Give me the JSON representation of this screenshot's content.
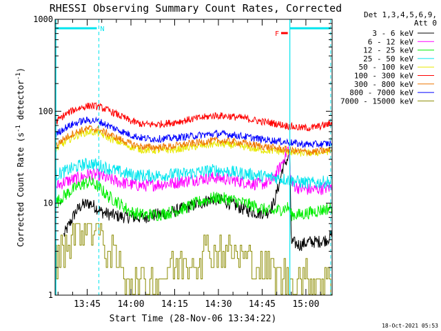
{
  "chart_data": {
    "type": "line",
    "title": "RHESSI Observing Summary Count Rates, Corrected",
    "xlabel": "Start Time (28-Nov-06 13:34:22)",
    "ylabel": "Corrected Count Rate (s⁻¹ detector⁻¹)",
    "ylabel_main": "Corrected Count Rate (s",
    "ylabel_sup1": "-1",
    "ylabel_mid": " detector",
    "ylabel_sup2": "-1",
    "ylabel_end": ")",
    "y_scale": "log",
    "ylim": [
      1,
      1000
    ],
    "xlim_min": [
      0,
      95
    ],
    "x_unit": "minutes after 13:34:22",
    "x_ticks": [
      {
        "t": 11,
        "label": "13:45"
      },
      {
        "t": 26,
        "label": "14:00"
      },
      {
        "t": 41,
        "label": "14:15"
      },
      {
        "t": 56,
        "label": "14:30"
      },
      {
        "t": 71,
        "label": "14:45"
      },
      {
        "t": 86,
        "label": "15:00"
      }
    ],
    "y_ticks": [
      {
        "v": 1,
        "label": "1"
      },
      {
        "v": 10,
        "label": "10"
      },
      {
        "v": 100,
        "label": "100"
      },
      {
        "v": 1000,
        "label": "1000"
      }
    ],
    "legend_position": "right",
    "legend_header": [
      "Det 1,3,4,5,6,9,",
      "Att 0"
    ],
    "timestamp": "18-Oct-2021 05:53",
    "annotations": {
      "night_marker": {
        "label": "N",
        "t_start": 0,
        "t_end": 15,
        "color": "#00e5ee"
      },
      "saa_marker": {
        "t_start": 80.5,
        "t_end": 94.5,
        "color": "#00e5ee"
      },
      "flare_marker": {
        "label": "F",
        "t_start": 77.5,
        "t_end": 80.5,
        "color": "#ff0000"
      },
      "dashed_lines_t": [
        15,
        94.5
      ],
      "solid_lines_t": [
        80.5
      ]
    },
    "series": [
      {
        "name": "3 - 6 keV",
        "color": "#000000",
        "points": [
          [
            3,
            4.5
          ],
          [
            5,
            6
          ],
          [
            7,
            8
          ],
          [
            9,
            9.5
          ],
          [
            12,
            10
          ],
          [
            14,
            9
          ],
          [
            16,
            8
          ],
          [
            19,
            7.5
          ],
          [
            22,
            7.2
          ],
          [
            26,
            7
          ],
          [
            30,
            7
          ],
          [
            35,
            7.5
          ],
          [
            40,
            8
          ],
          [
            45,
            9
          ],
          [
            50,
            10
          ],
          [
            53,
            11
          ],
          [
            56,
            11
          ],
          [
            60,
            10
          ],
          [
            65,
            8.5
          ],
          [
            70,
            7.8
          ],
          [
            73,
            8
          ],
          [
            75,
            10
          ],
          [
            77,
            17
          ],
          [
            78,
            24
          ],
          [
            80,
            32
          ],
          [
            80.4,
            40
          ],
          [
            81,
            3.8
          ],
          [
            84,
            3.5
          ],
          [
            87,
            3.8
          ],
          [
            90,
            3.8
          ],
          [
            93,
            4
          ],
          [
            95,
            4.5
          ]
        ]
      },
      {
        "name": "6 - 12 keV",
        "color": "#ff00ff",
        "points": [
          [
            0,
            15
          ],
          [
            3,
            17
          ],
          [
            6,
            18
          ],
          [
            9,
            19
          ],
          [
            12,
            21
          ],
          [
            15,
            20
          ],
          [
            18,
            18.5
          ],
          [
            22,
            17
          ],
          [
            26,
            16
          ],
          [
            30,
            15.5
          ],
          [
            35,
            16
          ],
          [
            40,
            16.5
          ],
          [
            45,
            17.5
          ],
          [
            50,
            18.5
          ],
          [
            55,
            19
          ],
          [
            60,
            18
          ],
          [
            65,
            17
          ],
          [
            70,
            16
          ],
          [
            74,
            17
          ],
          [
            77,
            24
          ],
          [
            80,
            40
          ],
          [
            81,
            16
          ],
          [
            84,
            14.5
          ],
          [
            88,
            14
          ],
          [
            92,
            14.5
          ],
          [
            95,
            15
          ]
        ]
      },
      {
        "name": "12 - 25 keV",
        "color": "#00ee00",
        "points": [
          [
            0,
            10
          ],
          [
            3,
            12
          ],
          [
            6,
            14
          ],
          [
            9,
            16
          ],
          [
            12,
            17
          ],
          [
            15,
            15
          ],
          [
            18,
            12
          ],
          [
            22,
            10
          ],
          [
            26,
            8
          ],
          [
            30,
            7.5
          ],
          [
            35,
            7.5
          ],
          [
            40,
            8
          ],
          [
            45,
            9
          ],
          [
            50,
            10.5
          ],
          [
            55,
            11.5
          ],
          [
            60,
            11
          ],
          [
            65,
            10
          ],
          [
            70,
            9
          ],
          [
            74,
            8
          ],
          [
            77,
            8.5
          ],
          [
            80,
            9
          ],
          [
            81,
            7.5
          ],
          [
            84,
            7.5
          ],
          [
            88,
            8
          ],
          [
            92,
            8.5
          ],
          [
            95,
            9
          ]
        ]
      },
      {
        "name": "25 - 50 keV",
        "color": "#00e5ee",
        "points": [
          [
            0,
            20
          ],
          [
            3,
            22
          ],
          [
            6,
            24
          ],
          [
            9,
            26
          ],
          [
            12,
            27
          ],
          [
            15,
            26
          ],
          [
            18,
            24
          ],
          [
            22,
            22
          ],
          [
            26,
            20.5
          ],
          [
            30,
            20
          ],
          [
            35,
            20
          ],
          [
            40,
            20.5
          ],
          [
            45,
            21
          ],
          [
            50,
            22
          ],
          [
            55,
            23
          ],
          [
            60,
            22
          ],
          [
            65,
            21
          ],
          [
            70,
            20
          ],
          [
            75,
            19
          ],
          [
            80,
            18
          ],
          [
            84,
            17
          ],
          [
            88,
            16.5
          ],
          [
            92,
            17
          ],
          [
            95,
            17
          ]
        ]
      },
      {
        "name": "50 - 100 keV",
        "color": "#e8e800",
        "points": [
          [
            0,
            38
          ],
          [
            3,
            45
          ],
          [
            6,
            52
          ],
          [
            9,
            57
          ],
          [
            12,
            60
          ],
          [
            15,
            58
          ],
          [
            18,
            52
          ],
          [
            22,
            46
          ],
          [
            26,
            41
          ],
          [
            30,
            38
          ],
          [
            35,
            37.5
          ],
          [
            40,
            38
          ],
          [
            45,
            40
          ],
          [
            50,
            42
          ],
          [
            55,
            44
          ],
          [
            60,
            43
          ],
          [
            65,
            41
          ],
          [
            70,
            38
          ],
          [
            75,
            37
          ],
          [
            80,
            36
          ],
          [
            84,
            35
          ],
          [
            88,
            35
          ],
          [
            92,
            36
          ],
          [
            95,
            37
          ]
        ]
      },
      {
        "name": "100 - 300 keV",
        "color": "#ff0000",
        "points": [
          [
            0,
            75
          ],
          [
            3,
            90
          ],
          [
            6,
            102
          ],
          [
            9,
            110
          ],
          [
            12,
            115
          ],
          [
            15,
            112
          ],
          [
            18,
            103
          ],
          [
            22,
            90
          ],
          [
            26,
            78
          ],
          [
            30,
            72
          ],
          [
            35,
            72
          ],
          [
            40,
            75
          ],
          [
            45,
            80
          ],
          [
            50,
            85
          ],
          [
            55,
            90
          ],
          [
            60,
            88
          ],
          [
            65,
            84
          ],
          [
            70,
            78
          ],
          [
            75,
            74
          ],
          [
            80,
            69
          ],
          [
            84,
            66
          ],
          [
            88,
            66
          ],
          [
            92,
            70
          ],
          [
            95,
            74
          ]
        ]
      },
      {
        "name": "300 - 800 keV",
        "color": "#ee7700",
        "points": [
          [
            0,
            42
          ],
          [
            3,
            50
          ],
          [
            6,
            57
          ],
          [
            9,
            62
          ],
          [
            12,
            65
          ],
          [
            15,
            63
          ],
          [
            18,
            57
          ],
          [
            22,
            50
          ],
          [
            26,
            44
          ],
          [
            30,
            41
          ],
          [
            35,
            40.5
          ],
          [
            40,
            41.5
          ],
          [
            45,
            44
          ],
          [
            50,
            46
          ],
          [
            55,
            48
          ],
          [
            60,
            47
          ],
          [
            65,
            45
          ],
          [
            70,
            42
          ],
          [
            75,
            40
          ],
          [
            80,
            38
          ],
          [
            84,
            36.5
          ],
          [
            88,
            36
          ],
          [
            92,
            37
          ],
          [
            95,
            38
          ]
        ]
      },
      {
        "name": "800 - 7000 keV",
        "color": "#0000ff",
        "points": [
          [
            0,
            55
          ],
          [
            3,
            65
          ],
          [
            6,
            72
          ],
          [
            9,
            78
          ],
          [
            12,
            80
          ],
          [
            15,
            78
          ],
          [
            18,
            70
          ],
          [
            22,
            62
          ],
          [
            26,
            55
          ],
          [
            30,
            51
          ],
          [
            35,
            50
          ],
          [
            40,
            51
          ],
          [
            45,
            53
          ],
          [
            50,
            55
          ],
          [
            55,
            57
          ],
          [
            60,
            56
          ],
          [
            65,
            53
          ],
          [
            70,
            50
          ],
          [
            75,
            48
          ],
          [
            80,
            46
          ],
          [
            84,
            44
          ],
          [
            88,
            43.5
          ],
          [
            92,
            44
          ],
          [
            95,
            45
          ]
        ]
      },
      {
        "name": "7000 - 15000 keV",
        "color": "#8b8b00",
        "points": [
          [
            0,
            2.5
          ],
          [
            2,
            3
          ],
          [
            4,
            3.5
          ],
          [
            6,
            4.5
          ],
          [
            8,
            5.5
          ],
          [
            10,
            6
          ],
          [
            12,
            6
          ],
          [
            14,
            5
          ],
          [
            16,
            4
          ],
          [
            18,
            3.2
          ],
          [
            20,
            2.5
          ],
          [
            22,
            2
          ],
          [
            24,
            1.5
          ],
          [
            26,
            1.4
          ],
          [
            30,
            1.3
          ],
          [
            35,
            1.5
          ],
          [
            38,
            1.8
          ],
          [
            40,
            2
          ],
          [
            44,
            2.2
          ],
          [
            48,
            2.6
          ],
          [
            52,
            3
          ],
          [
            56,
            3.2
          ],
          [
            60,
            3
          ],
          [
            64,
            2.6
          ],
          [
            68,
            2.2
          ],
          [
            72,
            1.9
          ],
          [
            76,
            1.7
          ],
          [
            80,
            1.5
          ],
          [
            84,
            1.5
          ],
          [
            88,
            1.4
          ],
          [
            92,
            1.5
          ],
          [
            95,
            1.5
          ]
        ]
      }
    ]
  }
}
